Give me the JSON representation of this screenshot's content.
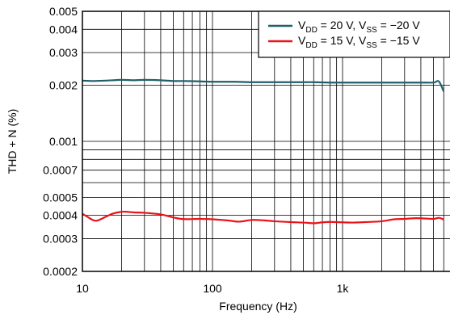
{
  "chart_data": {
    "type": "line",
    "title": "",
    "xlabel": "Frequency (Hz)",
    "ylabel": "THD + N (%)",
    "xscale": "log",
    "yscale": "log",
    "xlim": [
      10,
      6000
    ],
    "ylim": [
      0.0002,
      0.005
    ],
    "grid": true,
    "legend_position": "top-right",
    "x_tick_labels": [
      "10",
      "100",
      "1k"
    ],
    "y_tick_labels": [
      "0.0002",
      "0.0003",
      "0.0004",
      "0.0005",
      "0.0007",
      "0.001",
      "0.002",
      "0.003",
      "0.004",
      "0.005"
    ],
    "series": [
      {
        "name_main": "V",
        "sub1": "DD",
        "mid": " = 20 V, V",
        "sub2": "SS",
        "end": " = −20 V",
        "color": "#1f5f6b",
        "x": [
          10,
          12,
          15,
          20,
          25,
          30,
          40,
          50,
          60,
          80,
          100,
          150,
          200,
          300,
          400,
          500,
          600,
          800,
          1000,
          1500,
          2000,
          3000,
          4000,
          5000,
          5500,
          6000
        ],
        "y": [
          0.00212,
          0.00211,
          0.00212,
          0.00214,
          0.00213,
          0.00214,
          0.00213,
          0.00211,
          0.00211,
          0.0021,
          0.00209,
          0.00209,
          0.00208,
          0.00208,
          0.00208,
          0.00208,
          0.00208,
          0.00207,
          0.00207,
          0.00207,
          0.00207,
          0.00207,
          0.00207,
          0.00207,
          0.0021,
          0.00185
        ]
      },
      {
        "name_main": "V",
        "sub1": "DD",
        "mid": " = 15 V, V",
        "sub2": "SS",
        "end": " = −15 V",
        "color": "#e8141a",
        "x": [
          10,
          11,
          12,
          13,
          15,
          17,
          20,
          22,
          25,
          30,
          40,
          50,
          60,
          80,
          100,
          130,
          160,
          200,
          250,
          300,
          400,
          500,
          600,
          700,
          800,
          1000,
          1200,
          1500,
          2000,
          2500,
          3000,
          3500,
          4000,
          5000,
          5500,
          6000
        ],
        "y": [
          0.000408,
          0.000392,
          0.000378,
          0.000375,
          0.000392,
          0.000408,
          0.000418,
          0.000418,
          0.000415,
          0.000413,
          0.000405,
          0.00039,
          0.000382,
          0.000383,
          0.000381,
          0.000376,
          0.00037,
          0.000378,
          0.000376,
          0.000372,
          0.000368,
          0.000366,
          0.000363,
          0.000367,
          0.000369,
          0.000367,
          0.000366,
          0.000368,
          0.000372,
          0.000381,
          0.000383,
          0.000386,
          0.000386,
          0.000383,
          0.000388,
          0.00038
        ]
      }
    ]
  }
}
